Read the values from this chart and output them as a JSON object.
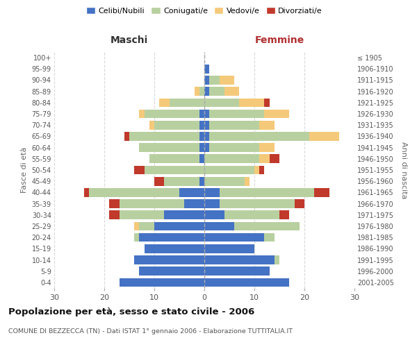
{
  "age_groups": [
    "0-4",
    "5-9",
    "10-14",
    "15-19",
    "20-24",
    "25-29",
    "30-34",
    "35-39",
    "40-44",
    "45-49",
    "50-54",
    "55-59",
    "60-64",
    "65-69",
    "70-74",
    "75-79",
    "80-84",
    "85-89",
    "90-94",
    "95-99",
    "100+"
  ],
  "birth_years": [
    "2001-2005",
    "1996-2000",
    "1991-1995",
    "1986-1990",
    "1981-1985",
    "1976-1980",
    "1971-1975",
    "1966-1970",
    "1961-1965",
    "1956-1960",
    "1951-1955",
    "1946-1950",
    "1941-1945",
    "1936-1940",
    "1931-1935",
    "1926-1930",
    "1921-1925",
    "1916-1920",
    "1911-1915",
    "1906-1910",
    "≤ 1905"
  ],
  "colors": {
    "celibi": "#4472c4",
    "coniugati": "#b8d0a0",
    "vedovi": "#f5c97a",
    "divorziati": "#c0392b"
  },
  "males": {
    "celibi": [
      17,
      13,
      14,
      12,
      13,
      10,
      8,
      4,
      5,
      1,
      0,
      1,
      1,
      1,
      1,
      1,
      0,
      0,
      0,
      0,
      0
    ],
    "coniugati": [
      0,
      0,
      0,
      0,
      1,
      3,
      9,
      13,
      18,
      7,
      12,
      10,
      12,
      14,
      9,
      11,
      7,
      1,
      0,
      0,
      0
    ],
    "vedovi": [
      0,
      0,
      0,
      0,
      0,
      1,
      0,
      0,
      0,
      0,
      0,
      0,
      0,
      0,
      1,
      1,
      2,
      1,
      0,
      0,
      0
    ],
    "divorziati": [
      0,
      0,
      0,
      0,
      0,
      0,
      2,
      2,
      1,
      2,
      2,
      0,
      0,
      1,
      0,
      0,
      0,
      0,
      0,
      0,
      0
    ]
  },
  "females": {
    "celibi": [
      17,
      13,
      14,
      10,
      12,
      6,
      4,
      3,
      3,
      0,
      0,
      0,
      1,
      1,
      1,
      1,
      0,
      1,
      1,
      1,
      0
    ],
    "coniugati": [
      0,
      0,
      1,
      0,
      2,
      13,
      11,
      15,
      19,
      8,
      10,
      11,
      10,
      20,
      10,
      11,
      7,
      3,
      2,
      0,
      0
    ],
    "vedovi": [
      0,
      0,
      0,
      0,
      0,
      0,
      0,
      0,
      0,
      1,
      1,
      2,
      3,
      6,
      3,
      5,
      5,
      3,
      3,
      0,
      0
    ],
    "divorziati": [
      0,
      0,
      0,
      0,
      0,
      0,
      2,
      2,
      3,
      0,
      1,
      2,
      0,
      0,
      0,
      0,
      1,
      0,
      0,
      0,
      0
    ]
  },
  "title": "Popolazione per età, sesso e stato civile - 2006",
  "subtitle": "COMUNE DI BEZZECCA (TN) - Dati ISTAT 1° gennaio 2006 - Elaborazione TUTTITALIA.IT",
  "xlabel_left": "Maschi",
  "xlabel_right": "Femmine",
  "ylabel_left": "Fasce di età",
  "ylabel_right": "Anni di nascita",
  "xlim": 30,
  "background_color": "#ffffff",
  "grid_color": "#d8d8d8"
}
